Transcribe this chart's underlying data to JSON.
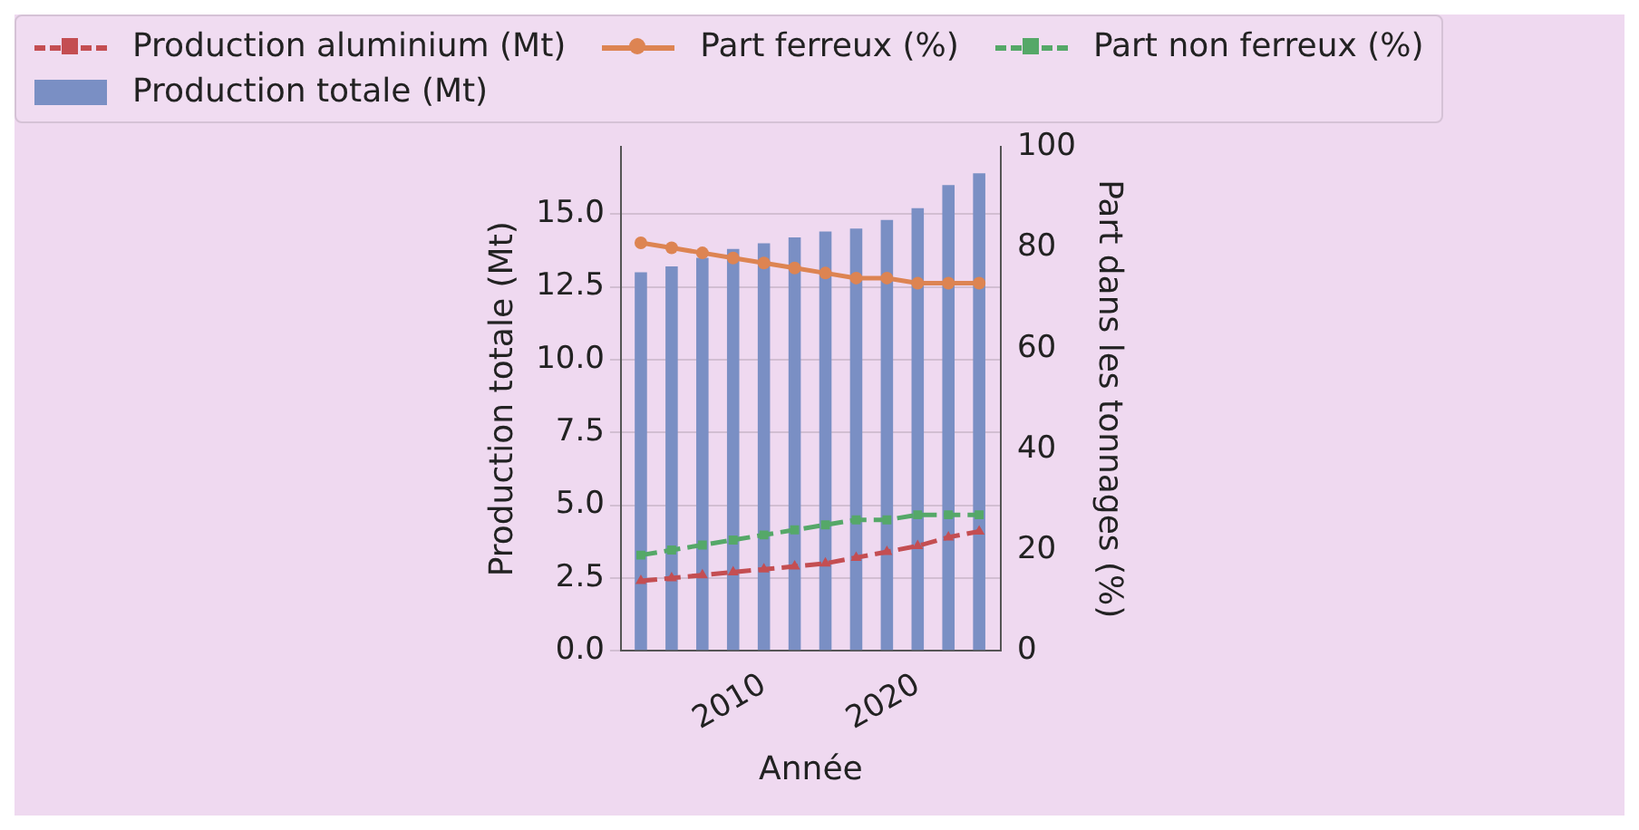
{
  "chart_data": {
    "type": "bar",
    "xlabel": "Année",
    "ylabel": "Production totale (Mt)",
    "y2label": "Part dans les tonnages (%)",
    "x": [
      2002,
      2004,
      2006,
      2008,
      2010,
      2012,
      2014,
      2016,
      2018,
      2020,
      2022,
      2024
    ],
    "series": [
      {
        "name": "Production aluminium (Mt)",
        "type": "line",
        "color": "#c44e52",
        "marker": "triangle",
        "line_style": "dashed",
        "values": [
          2.4,
          2.5,
          2.6,
          2.7,
          2.8,
          2.9,
          3.0,
          3.2,
          3.4,
          3.6,
          3.9,
          4.1
        ]
      },
      {
        "name": "Part ferreux (%)",
        "type": "line",
        "axis": "y2",
        "color": "#dd8452",
        "marker": "circle",
        "line_style": "solid",
        "values": [
          81,
          80,
          79,
          78,
          77,
          76,
          75,
          74,
          74,
          73,
          73,
          73
        ]
      },
      {
        "name": "Part non ferreux (%)",
        "type": "line",
        "axis": "y2",
        "color": "#55a868",
        "marker": "square",
        "line_style": "dashed",
        "values": [
          19,
          20,
          21,
          22,
          23,
          24,
          25,
          26,
          26,
          27,
          27,
          27
        ]
      },
      {
        "name": "Production totale (Mt)",
        "color": "#7a8fc4",
        "values": [
          13.0,
          13.2,
          13.5,
          13.8,
          14.0,
          14.2,
          14.4,
          14.5,
          14.8,
          15.2,
          16.0,
          16.4
        ]
      }
    ],
    "xlim": [
      2000.7,
      2025.4
    ],
    "xticks": [
      2010,
      2020
    ],
    "ylim": [
      0,
      17.3
    ],
    "yticks": [
      {
        "value": 0,
        "label": "0.0"
      },
      {
        "value": 2.5,
        "label": "2.5"
      },
      {
        "value": 5,
        "label": "5.0"
      },
      {
        "value": 7.5,
        "label": "7.5"
      },
      {
        "value": 10,
        "label": "10.0"
      },
      {
        "value": 12.5,
        "label": "12.5"
      },
      {
        "value": 15,
        "label": "15.0"
      }
    ],
    "y2lim": [
      0,
      100
    ],
    "y2ticks": [
      0,
      20,
      40,
      60,
      80,
      100
    ],
    "grid": "y",
    "legend": "top"
  }
}
